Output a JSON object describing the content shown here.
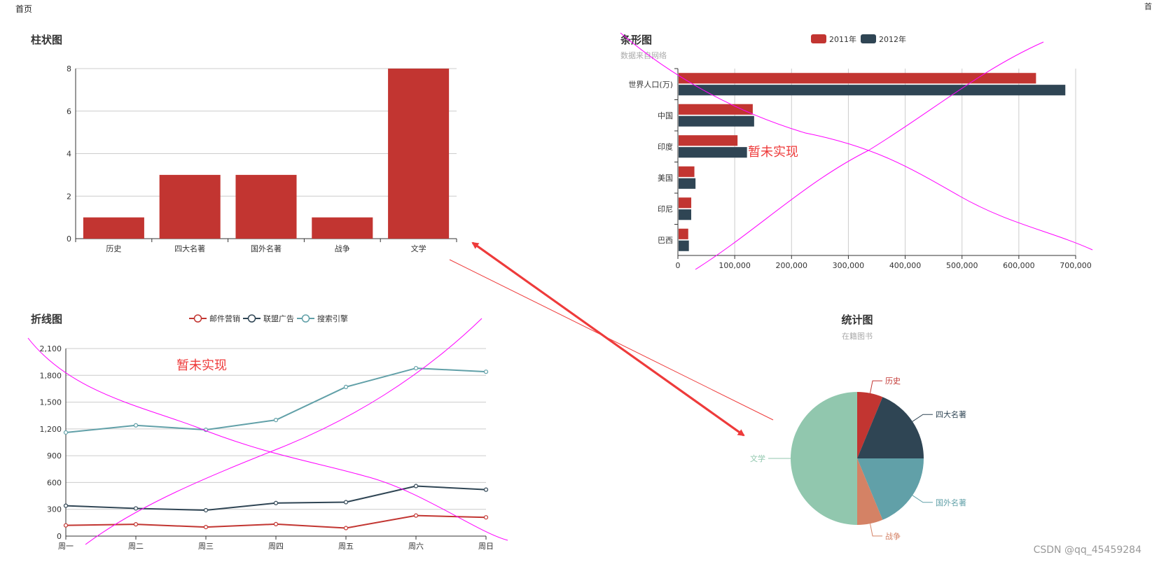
{
  "header": {
    "breadcrumb": "首页",
    "corner_text": "首"
  },
  "watermark": "CSDN @qq_45459284",
  "annotations": {
    "bar_h_note": "暂未实现",
    "line_note": "暂未实现"
  },
  "colors": {
    "red": "#c23531",
    "dark": "#2f4554",
    "teal": "#61a0a8",
    "orange": "#d48265",
    "green": "#91c7ae",
    "arrow": "#ee3b3b",
    "doodle": "#ff00ff"
  },
  "chart_data": [
    {
      "type": "bar",
      "title": "柱状图",
      "categories": [
        "历史",
        "四大名著",
        "国外名著",
        "战争",
        "文学"
      ],
      "values": [
        1,
        3,
        3,
        1,
        8
      ],
      "ylim": [
        0,
        8
      ],
      "yticks": [
        "0",
        "2",
        "4",
        "6",
        "8"
      ],
      "grid": true
    },
    {
      "type": "bar",
      "orientation": "horizontal",
      "title": "条形图",
      "subtitle": "数据来自网络",
      "categories": [
        "巴西",
        "印尼",
        "美国",
        "印度",
        "中国",
        "世界人口(万)"
      ],
      "series": [
        {
          "name": "2011年",
          "values": [
            18203,
            23489,
            29034,
            104970,
            131744,
            630230
          ]
        },
        {
          "name": "2012年",
          "values": [
            19325,
            23438,
            31000,
            121594,
            134141,
            681807
          ]
        }
      ],
      "xlim": [
        0,
        700000
      ],
      "xticks": [
        "0",
        "100,000",
        "200,000",
        "300,000",
        "400,000",
        "500,000",
        "600,000",
        "700,000"
      ],
      "legend": "top-center",
      "grid": true
    },
    {
      "type": "line",
      "title": "折线图",
      "x": [
        "周一",
        "周二",
        "周三",
        "周四",
        "周五",
        "周六",
        "周日"
      ],
      "series": [
        {
          "name": "邮件营销",
          "values": [
            120,
            132,
            101,
            134,
            90,
            230,
            210
          ]
        },
        {
          "name": "联盟广告",
          "values": [
            340,
            310,
            290,
            370,
            380,
            560,
            520
          ]
        },
        {
          "name": "搜索引擎",
          "values": [
            1160,
            1240,
            1190,
            1300,
            1670,
            1880,
            1840
          ]
        }
      ],
      "ylim": [
        0,
        2100
      ],
      "yticks": [
        "0",
        "300",
        "600",
        "900",
        "1,200",
        "1,500",
        "1,800",
        "2,100"
      ],
      "legend": "top-center",
      "grid": true
    },
    {
      "type": "pie",
      "title": "统计图",
      "subtitle": "在籍图书",
      "labels": [
        "历史",
        "四大名著",
        "国外名著",
        "战争",
        "文学"
      ],
      "values": [
        1,
        3,
        3,
        1,
        8
      ]
    }
  ]
}
